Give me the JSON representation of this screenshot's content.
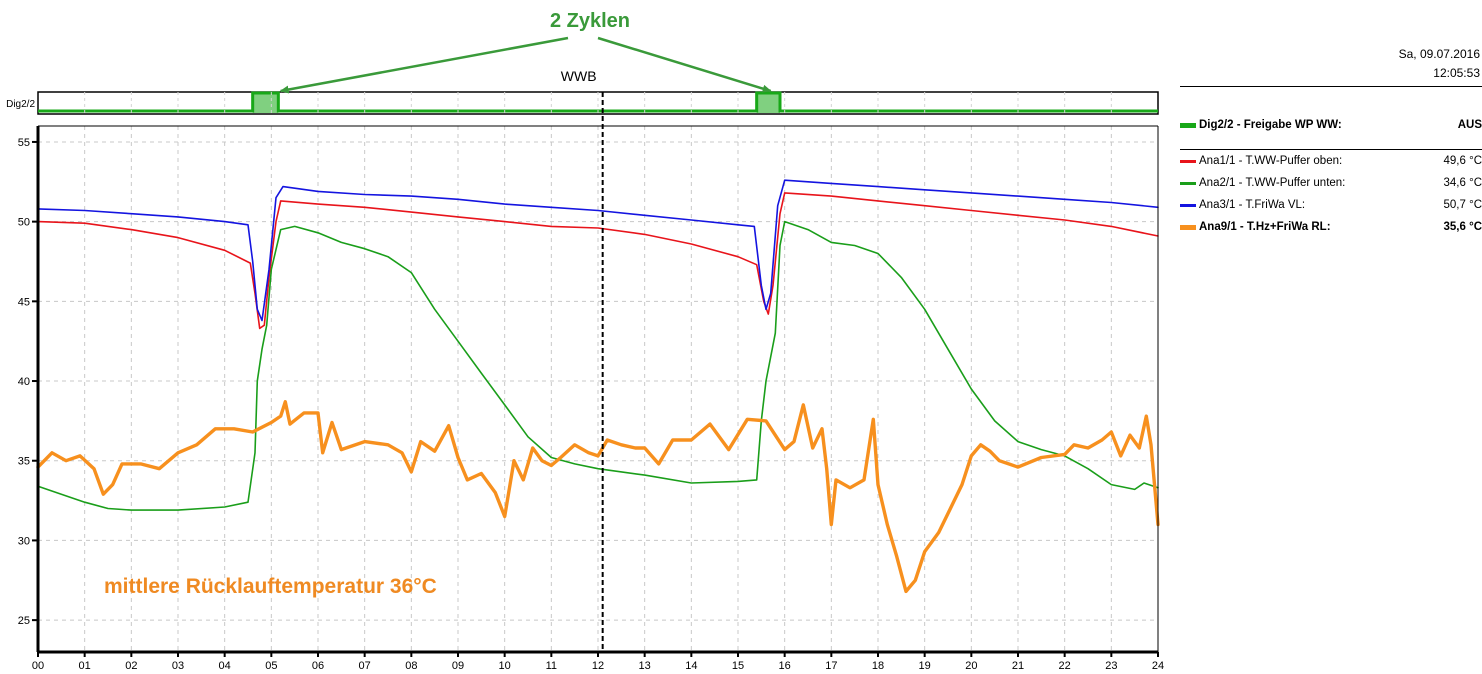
{
  "header": {
    "date": "Sa, 09.07.2016",
    "time": "12:05:53"
  },
  "annotations": {
    "cycles": "2 Zyklen",
    "return_temp": "mittlere Rücklauftemperatur 36°C",
    "marker": "WWB"
  },
  "colors": {
    "red": "#e8141b",
    "green": "#1a9e1a",
    "blue": "#1414e0",
    "orange": "#f7901e",
    "dig_line": "#18a818",
    "dig_fill": "#80d080",
    "annot_green": "#3a9a3a",
    "annot_orange": "#ef8a22"
  },
  "legend": {
    "digital": {
      "label": "Dig2/2 - Freigabe WP WW:",
      "value": "AUS",
      "color": "#18a818"
    },
    "analog": [
      {
        "label": "Ana1/1 - T.WW-Puffer oben:",
        "value": "49,6 °C",
        "color": "#e8141b",
        "bold": false
      },
      {
        "label": "Ana2/1 - T.WW-Puffer unten:",
        "value": "34,6 °C",
        "color": "#1a9e1a",
        "bold": false
      },
      {
        "label": "Ana3/1 - T.FriWa VL:",
        "value": "50,7 °C",
        "color": "#1414e0",
        "bold": false
      },
      {
        "label": "Ana9/1 - T.Hz+FriWa RL:",
        "value": "35,6 °C",
        "color": "#f7901e",
        "bold": true
      }
    ]
  },
  "chart_data": {
    "type": "line",
    "digital_panel": {
      "label": "Dig2/2",
      "on_intervals_h": [
        [
          4.6,
          5.15
        ],
        [
          15.4,
          15.9
        ]
      ]
    },
    "x": {
      "range": [
        0,
        24
      ],
      "ticks": [
        "00",
        "01",
        "02",
        "03",
        "04",
        "05",
        "06",
        "07",
        "08",
        "09",
        "10",
        "11",
        "12",
        "13",
        "14",
        "15",
        "16",
        "17",
        "18",
        "19",
        "20",
        "21",
        "22",
        "23",
        "24"
      ],
      "marker_h": 12.1
    },
    "y": {
      "range": [
        23,
        56
      ],
      "ticks": [
        25,
        30,
        35,
        40,
        45,
        50,
        55
      ]
    },
    "grid": true,
    "series": [
      {
        "name": "Ana1/1 - T.WW-Puffer oben",
        "color": "#e8141b",
        "width": 1.6,
        "points": [
          [
            0,
            50.0
          ],
          [
            1,
            49.9
          ],
          [
            2,
            49.5
          ],
          [
            3,
            49.0
          ],
          [
            4,
            48.2
          ],
          [
            4.55,
            47.4
          ],
          [
            4.65,
            45.5
          ],
          [
            4.75,
            43.3
          ],
          [
            4.85,
            43.5
          ],
          [
            4.95,
            46.5
          ],
          [
            5.1,
            50.0
          ],
          [
            5.2,
            51.3
          ],
          [
            6,
            51.1
          ],
          [
            7,
            50.9
          ],
          [
            8,
            50.6
          ],
          [
            9,
            50.3
          ],
          [
            10,
            50.0
          ],
          [
            11,
            49.7
          ],
          [
            12,
            49.6
          ],
          [
            13,
            49.2
          ],
          [
            14,
            48.6
          ],
          [
            15,
            47.8
          ],
          [
            15.4,
            47.3
          ],
          [
            15.55,
            45.0
          ],
          [
            15.65,
            44.2
          ],
          [
            15.75,
            46.0
          ],
          [
            15.9,
            50.5
          ],
          [
            16,
            51.8
          ],
          [
            17,
            51.6
          ],
          [
            18,
            51.3
          ],
          [
            19,
            51.0
          ],
          [
            20,
            50.7
          ],
          [
            21,
            50.4
          ],
          [
            22,
            50.1
          ],
          [
            23,
            49.7
          ],
          [
            24,
            49.1
          ]
        ]
      },
      {
        "name": "Ana2/1 - T.WW-Puffer unten",
        "color": "#1a9e1a",
        "width": 1.6,
        "points": [
          [
            0,
            33.4
          ],
          [
            0.5,
            32.9
          ],
          [
            1,
            32.4
          ],
          [
            1.5,
            32.0
          ],
          [
            2,
            31.9
          ],
          [
            3,
            31.9
          ],
          [
            4,
            32.1
          ],
          [
            4.5,
            32.4
          ],
          [
            4.65,
            35.5
          ],
          [
            4.7,
            40.0
          ],
          [
            4.8,
            42.0
          ],
          [
            4.9,
            43.5
          ],
          [
            5.0,
            47.0
          ],
          [
            5.2,
            49.5
          ],
          [
            5.5,
            49.7
          ],
          [
            6,
            49.3
          ],
          [
            6.5,
            48.7
          ],
          [
            7,
            48.3
          ],
          [
            7.5,
            47.8
          ],
          [
            8,
            46.8
          ],
          [
            8.5,
            44.5
          ],
          [
            9,
            42.5
          ],
          [
            9.5,
            40.5
          ],
          [
            10,
            38.5
          ],
          [
            10.5,
            36.5
          ],
          [
            11,
            35.2
          ],
          [
            11.5,
            34.8
          ],
          [
            12,
            34.5
          ],
          [
            13,
            34.1
          ],
          [
            14,
            33.6
          ],
          [
            15,
            33.7
          ],
          [
            15.4,
            33.8
          ],
          [
            15.5,
            37.5
          ],
          [
            15.6,
            40.0
          ],
          [
            15.8,
            43.0
          ],
          [
            15.9,
            48.5
          ],
          [
            16,
            50.0
          ],
          [
            16.5,
            49.5
          ],
          [
            17,
            48.7
          ],
          [
            17.5,
            48.5
          ],
          [
            18,
            48.0
          ],
          [
            18.5,
            46.5
          ],
          [
            19,
            44.5
          ],
          [
            19.5,
            42.0
          ],
          [
            20,
            39.5
          ],
          [
            20.5,
            37.5
          ],
          [
            21,
            36.2
          ],
          [
            21.5,
            35.7
          ],
          [
            22,
            35.3
          ],
          [
            22.5,
            34.5
          ],
          [
            23,
            33.5
          ],
          [
            23.5,
            33.2
          ],
          [
            23.7,
            33.6
          ],
          [
            24,
            33.3
          ]
        ]
      },
      {
        "name": "Ana3/1 - T.FriWa VL",
        "color": "#1414e0",
        "width": 1.6,
        "points": [
          [
            0,
            50.8
          ],
          [
            1,
            50.7
          ],
          [
            2,
            50.5
          ],
          [
            3,
            50.3
          ],
          [
            4,
            50.0
          ],
          [
            4.5,
            49.8
          ],
          [
            4.6,
            47.5
          ],
          [
            4.7,
            44.5
          ],
          [
            4.8,
            43.8
          ],
          [
            4.95,
            47.0
          ],
          [
            5.1,
            51.5
          ],
          [
            5.25,
            52.2
          ],
          [
            6,
            51.9
          ],
          [
            7,
            51.7
          ],
          [
            8,
            51.6
          ],
          [
            9,
            51.4
          ],
          [
            10,
            51.1
          ],
          [
            11,
            50.9
          ],
          [
            12,
            50.7
          ],
          [
            13,
            50.4
          ],
          [
            14,
            50.1
          ],
          [
            15,
            49.8
          ],
          [
            15.35,
            49.7
          ],
          [
            15.5,
            46.0
          ],
          [
            15.6,
            44.5
          ],
          [
            15.7,
            45.5
          ],
          [
            15.85,
            51.0
          ],
          [
            16,
            52.6
          ],
          [
            17,
            52.4
          ],
          [
            18,
            52.2
          ],
          [
            19,
            52.0
          ],
          [
            20,
            51.8
          ],
          [
            21,
            51.6
          ],
          [
            22,
            51.4
          ],
          [
            23,
            51.2
          ],
          [
            24,
            50.9
          ]
        ]
      },
      {
        "name": "Ana9/1 - T.Hz+FriWa RL",
        "color": "#f7901e",
        "width": 3.4,
        "points": [
          [
            0,
            34.6
          ],
          [
            0.3,
            35.5
          ],
          [
            0.6,
            35.0
          ],
          [
            0.9,
            35.3
          ],
          [
            1.2,
            34.5
          ],
          [
            1.4,
            32.9
          ],
          [
            1.6,
            33.5
          ],
          [
            1.8,
            34.8
          ],
          [
            2.2,
            34.8
          ],
          [
            2.6,
            34.5
          ],
          [
            3,
            35.5
          ],
          [
            3.4,
            36.0
          ],
          [
            3.8,
            37.0
          ],
          [
            4.2,
            37.0
          ],
          [
            4.6,
            36.8
          ],
          [
            5.0,
            37.4
          ],
          [
            5.2,
            37.8
          ],
          [
            5.3,
            38.7
          ],
          [
            5.4,
            37.3
          ],
          [
            5.7,
            38.0
          ],
          [
            6,
            38.0
          ],
          [
            6.1,
            35.5
          ],
          [
            6.3,
            37.4
          ],
          [
            6.5,
            35.7
          ],
          [
            7,
            36.2
          ],
          [
            7.5,
            36.0
          ],
          [
            7.8,
            35.5
          ],
          [
            8,
            34.3
          ],
          [
            8.2,
            36.2
          ],
          [
            8.5,
            35.6
          ],
          [
            8.8,
            37.2
          ],
          [
            9,
            35.2
          ],
          [
            9.2,
            33.8
          ],
          [
            9.5,
            34.2
          ],
          [
            9.8,
            33.0
          ],
          [
            10,
            31.5
          ],
          [
            10.2,
            35.0
          ],
          [
            10.4,
            33.8
          ],
          [
            10.6,
            35.8
          ],
          [
            10.8,
            35.0
          ],
          [
            11,
            34.7
          ],
          [
            11.2,
            35.2
          ],
          [
            11.5,
            36.0
          ],
          [
            11.8,
            35.5
          ],
          [
            12,
            35.3
          ],
          [
            12.2,
            36.3
          ],
          [
            12.5,
            36.0
          ],
          [
            12.8,
            35.8
          ],
          [
            13,
            35.8
          ],
          [
            13.3,
            34.8
          ],
          [
            13.6,
            36.3
          ],
          [
            14,
            36.3
          ],
          [
            14.4,
            37.3
          ],
          [
            14.8,
            35.7
          ],
          [
            15.2,
            37.6
          ],
          [
            15.6,
            37.5
          ],
          [
            16,
            35.7
          ],
          [
            16.2,
            36.2
          ],
          [
            16.4,
            38.5
          ],
          [
            16.6,
            35.8
          ],
          [
            16.8,
            37.0
          ],
          [
            16.9,
            34.5
          ],
          [
            17.0,
            31.0
          ],
          [
            17.1,
            33.8
          ],
          [
            17.4,
            33.3
          ],
          [
            17.7,
            33.8
          ],
          [
            17.9,
            37.6
          ],
          [
            18.0,
            33.5
          ],
          [
            18.2,
            31.0
          ],
          [
            18.4,
            29.0
          ],
          [
            18.6,
            26.8
          ],
          [
            18.8,
            27.5
          ],
          [
            19.0,
            29.3
          ],
          [
            19.3,
            30.5
          ],
          [
            19.6,
            32.3
          ],
          [
            19.8,
            33.5
          ],
          [
            20,
            35.3
          ],
          [
            20.2,
            36.0
          ],
          [
            20.4,
            35.6
          ],
          [
            20.6,
            35.0
          ],
          [
            20.8,
            34.8
          ],
          [
            21,
            34.6
          ],
          [
            21.5,
            35.2
          ],
          [
            22,
            35.4
          ],
          [
            22.2,
            36.0
          ],
          [
            22.5,
            35.8
          ],
          [
            22.8,
            36.3
          ],
          [
            23,
            36.8
          ],
          [
            23.2,
            35.3
          ],
          [
            23.4,
            36.6
          ],
          [
            23.6,
            35.8
          ],
          [
            23.75,
            37.8
          ],
          [
            23.85,
            36.0
          ],
          [
            24,
            31.0
          ]
        ]
      }
    ]
  }
}
